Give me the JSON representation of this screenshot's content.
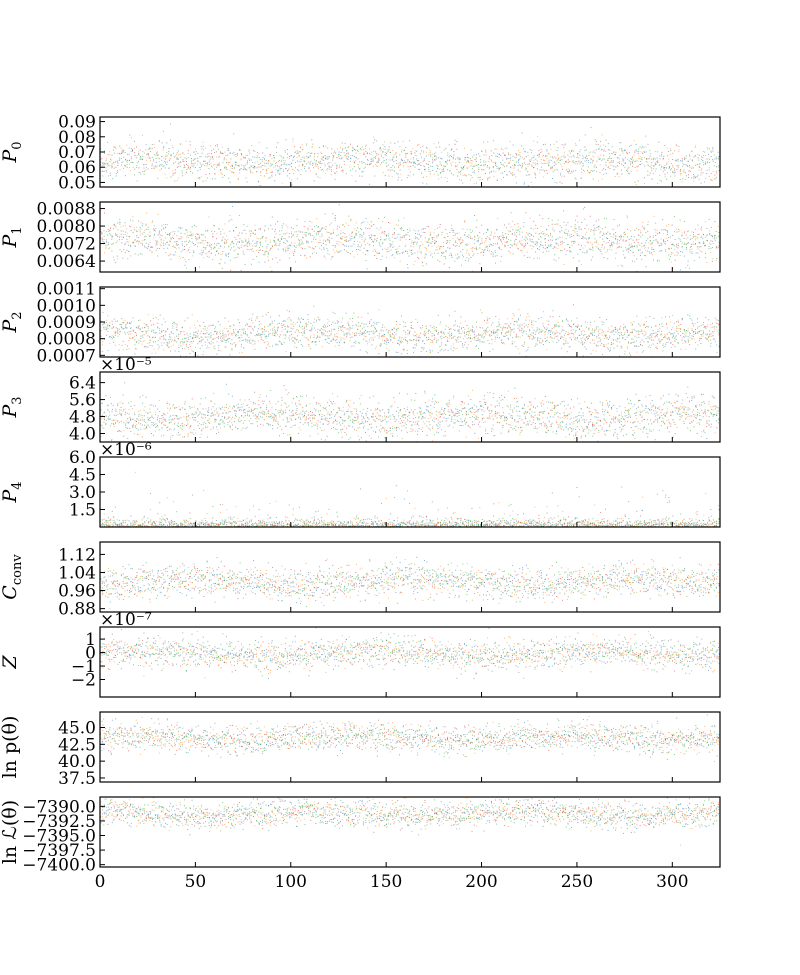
{
  "chart_data": {
    "type": "scatter",
    "x_ticks": [
      "0",
      "50",
      "100",
      "150",
      "200",
      "250",
      "300"
    ],
    "x_tick_values": [
      0,
      50,
      100,
      150,
      200,
      250,
      300
    ],
    "xlim": [
      0,
      325
    ],
    "series_colors": [
      "#1f77b4",
      "#ff7f0e",
      "#2ca02c",
      "#d62728"
    ],
    "panels": [
      {
        "id": "p0",
        "label": "P",
        "sub": "0",
        "offset": "",
        "ylim": [
          0.047,
          0.093
        ],
        "center": 0.064,
        "spread": 0.006,
        "tick_values": [
          0.05,
          0.06,
          0.07,
          0.08,
          0.09
        ],
        "ticks": [
          "0.05",
          "0.06",
          "0.07",
          "0.08",
          "0.09"
        ]
      },
      {
        "id": "p1",
        "label": "P",
        "sub": "1",
        "offset": "",
        "ylim": [
          0.0059,
          0.0091
        ],
        "center": 0.00735,
        "spread": 0.00045,
        "tick_values": [
          0.0064,
          0.0072,
          0.008,
          0.0088
        ],
        "ticks": [
          "0.0064",
          "0.0072",
          "0.0080",
          "0.0088"
        ]
      },
      {
        "id": "p2",
        "label": "P",
        "sub": "2",
        "offset": "",
        "ylim": [
          0.00069,
          0.00111
        ],
        "center": 0.00083,
        "spread": 5e-05,
        "tick_values": [
          0.0007,
          0.0008,
          0.0009,
          0.001,
          0.0011
        ],
        "ticks": [
          "0.0007",
          "0.0008",
          "0.0009",
          "0.0010",
          "0.0011"
        ]
      },
      {
        "id": "p3",
        "label": "P",
        "sub": "3",
        "offset": "×10⁻⁵",
        "ylim": [
          3.6,
          6.9
        ],
        "center": 4.8,
        "spread": 0.45,
        "tick_values": [
          4.0,
          4.8,
          5.6,
          6.4
        ],
        "ticks": [
          "4.0",
          "4.8",
          "5.6",
          "6.4"
        ]
      },
      {
        "id": "p4",
        "label": "P",
        "sub": "4",
        "offset": "×10⁻⁶",
        "ylim": [
          0.0,
          6.0
        ],
        "center": 0.25,
        "spread": 0.35,
        "tick_values": [
          1.5,
          3.0,
          4.5,
          6.0
        ],
        "ticks": [
          "1.5",
          "3.0",
          "4.5",
          "6.0"
        ]
      },
      {
        "id": "c_conv",
        "label": "C",
        "sub": "conv",
        "offset": "",
        "ylim": [
          0.865,
          1.175
        ],
        "center": 1.0,
        "spread": 0.035,
        "tick_values": [
          0.88,
          0.96,
          1.04,
          1.12
        ],
        "ticks": [
          "0.88",
          "0.96",
          "1.04",
          "1.12"
        ]
      },
      {
        "id": "z",
        "label": "Z",
        "sub": "",
        "offset": "×10⁻⁷",
        "ylim": [
          -3.3,
          1.9
        ],
        "center": -0.05,
        "spread": 0.55,
        "tick_values": [
          -2,
          -1,
          0,
          1
        ],
        "ticks": [
          "−2",
          "−1",
          "0",
          "1"
        ]
      },
      {
        "id": "lnp",
        "label": "ln p(θ)",
        "sub": "",
        "offset": "",
        "ylim": [
          36.9,
          47.3
        ],
        "center": 43.5,
        "spread": 1.0,
        "tick_values": [
          37.5,
          40.0,
          42.5,
          45.0
        ],
        "ticks": [
          "37.5",
          "40.0",
          "42.5",
          "45.0"
        ]
      },
      {
        "id": "lnL",
        "label": "ln ℒ(θ)",
        "sub": "",
        "offset": "",
        "ylim": [
          -7400.4,
          -7388.4
        ],
        "center": -7391.2,
        "spread": 1.1,
        "tick_values": [
          -7400.0,
          -7397.5,
          -7395.0,
          -7392.5,
          -7390.0
        ],
        "ticks": [
          "−7400.0",
          "−7397.5",
          "−7395.0",
          "−7392.5",
          "−7390.0"
        ]
      }
    ]
  }
}
